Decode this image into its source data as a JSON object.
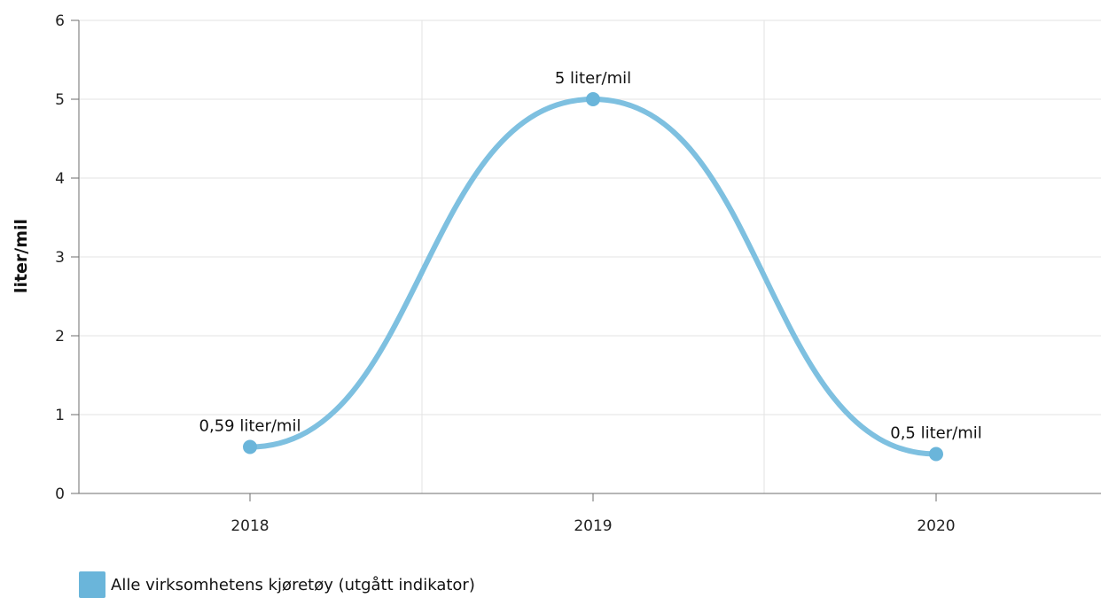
{
  "chart_data": {
    "type": "line",
    "title": "",
    "xlabel": "",
    "ylabel": "liter/mil",
    "categories": [
      "2018",
      "2019",
      "2020"
    ],
    "ylim": [
      0,
      6
    ],
    "yticks": [
      0,
      1,
      2,
      3,
      4,
      5,
      6
    ],
    "grid": true,
    "smooth": true,
    "legend_position": "bottom-left",
    "series": [
      {
        "name": "Alle virksomhetens kjøretøy (utgått indikator)",
        "color": "#7ec0e0",
        "values": [
          0.59,
          5,
          0.5
        ],
        "data_labels": [
          "0,59 liter/mil",
          "5 liter/mil",
          "0,5 liter/mil"
        ]
      }
    ]
  }
}
